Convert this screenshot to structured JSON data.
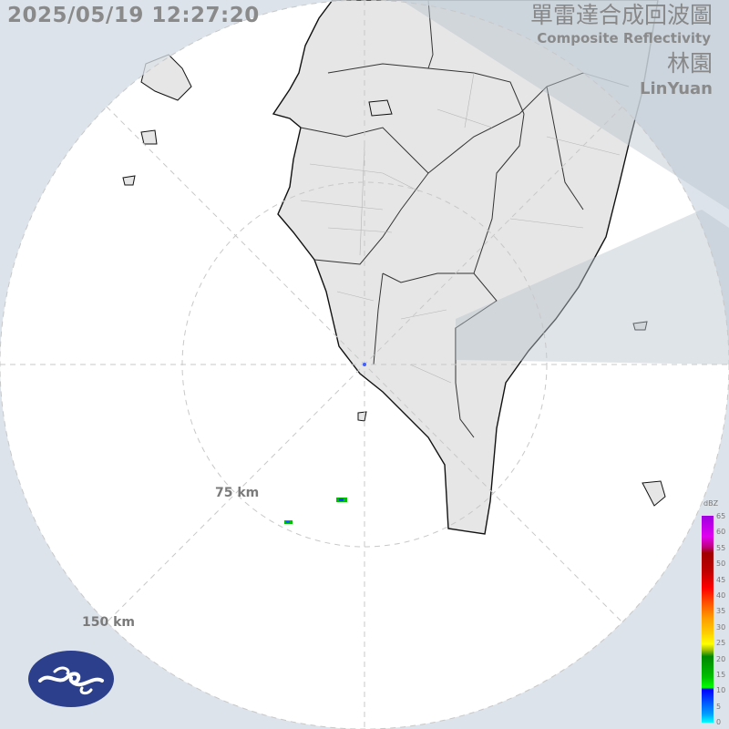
{
  "header": {
    "timestamp": "2025/05/19 12:27:20",
    "title_zh": "單雷達合成回波圖",
    "title_en": "Composite Reflectivity",
    "station_zh": "林園",
    "station_en": "LinYuan"
  },
  "range_rings": [
    "75 km",
    "150 km"
  ],
  "legend": {
    "unit": "dBZ",
    "ticks": [
      "65",
      "60",
      "55",
      "50",
      "45",
      "40",
      "35",
      "30",
      "25",
      "20",
      "15",
      "10",
      "5",
      "0"
    ]
  },
  "colors": {
    "background": "#e4e8ed",
    "land": "#e6e6e6",
    "coast": "#111111",
    "rings": "#c8c8c8"
  },
  "logo": "cwa-logo"
}
